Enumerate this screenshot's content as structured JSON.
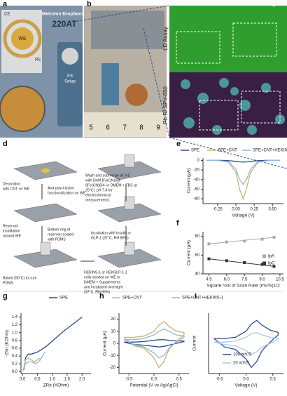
{
  "figure": {
    "panels": [
      "a",
      "b",
      "c",
      "d",
      "e",
      "f",
      "g",
      "h",
      "i"
    ],
    "a": {
      "ce": "CE",
      "we": "WE",
      "re": "RE",
      "brand": "Metrohm DropSens",
      "model": "220AT",
      "setup": [
        "3-E",
        "Setup"
      ]
    },
    "b": {
      "ruler": [
        "5",
        "6",
        "7",
        "8",
        "9"
      ]
    },
    "c": {
      "top": "LD Assay",
      "bottom": "Ph-R/ SPY-650"
    },
    "d": {
      "steps": [
        [
          "Decoration",
          "with CNT on WE"
        ],
        [
          "And poly-l-lysine",
          "functionalization on WE"
        ],
        [
          "Reservoir",
          "installation",
          "around WE"
        ],
        [
          "Bottom ring of",
          "reservoir coated",
          "with PDMS"
        ],
        [
          "Baked (50°C) to cure",
          "PDMS"
        ],
        [
          "HEKINS-1 or HEKGLP-1-1",
          "cells seeded on WE in",
          "DMEM + Supplements",
          "and incubated overnight",
          "(37°C, RH 85%)"
        ],
        [
          "Incubation with Insulin or",
          "GLP-1 (37°C, RH 85%)"
        ],
        [
          "Wash and submerge all 3-E",
          "with 5mM [Fe(CN)6]3-",
          "/[Fe(CN)6]4- in DMEM + FBS at",
          "25°C | pH 7.4 for",
          "electrochemical",
          "measurements"
        ]
      ]
    }
  },
  "chart_data": [
    {
      "type": "line",
      "xlabel": "Voltage (V)",
      "ylabel": "Current (μA)",
      "xlim": [
        -0.45,
        0.65
      ],
      "ylim": [
        -90,
        5
      ],
      "xticks": [
        {
          "value": -0.25,
          "label": "-0.25"
        },
        {
          "value": 0,
          "label": "0.00"
        },
        {
          "value": 0.25,
          "label": "0.25"
        },
        {
          "value": 0.5,
          "label": "0.50"
        }
      ],
      "yticks": [
        0,
        -20,
        -40,
        -60,
        -80
      ],
      "x": [
        -0.4,
        -0.3,
        -0.2,
        -0.1,
        0,
        0.05,
        0.1,
        0.15,
        0.2,
        0.3,
        0.4,
        0.5,
        0.6
      ],
      "series": [
        {
          "name": "SPE",
          "color": "#2a4d8f",
          "values": [
            0,
            0,
            0,
            -0.5,
            -2,
            -3,
            -3.5,
            -3,
            -2,
            -0.5,
            0,
            0,
            0
          ]
        },
        {
          "name": "SPE+CNT",
          "color": "#c8b27a",
          "values": [
            0,
            0,
            -1,
            -4,
            -25,
            -60,
            -80,
            -55,
            -25,
            -4,
            -1,
            0,
            0
          ]
        },
        {
          "name": "SPE+CNT+HEKINS-1",
          "color": "#8fb8dc",
          "values": [
            0,
            0,
            -1,
            -3,
            -18,
            -40,
            -50,
            -38,
            -18,
            -3,
            -1,
            0,
            0
          ]
        }
      ]
    },
    {
      "type": "scatter",
      "xlabel": "Square root of Scan Rate (mV/S)1/2",
      "ylabel": "Current (μA)",
      "xlim": [
        4,
        10.8
      ],
      "ylim": [
        40,
        85
      ],
      "xticks": [
        4.5,
        {
          "value": 6,
          "label": "6.0"
        },
        7.5,
        {
          "value": 9,
          "label": "9.0"
        },
        10.5
      ],
      "yticks": [
        40,
        60,
        80
      ],
      "x": [
        4.5,
        6,
        7.5,
        9,
        10
      ],
      "series": [
        {
          "name": "IpA",
          "color": "#a9a9a9",
          "values": [
            72,
            74,
            75,
            77,
            79
          ]
        },
        {
          "name": "IpC",
          "color": "#333333",
          "values": [
            56,
            54,
            52,
            50,
            48
          ]
        }
      ]
    },
    {
      "type": "line",
      "xlabel": "ZRe (KOhm)",
      "ylabel": "-ZIm (KOhm)",
      "xlim": [
        -0.05,
        2.3
      ],
      "ylim": [
        -0.05,
        1.5
      ],
      "xticks": [
        {
          "value": 0,
          "label": "0.0"
        },
        0.5,
        {
          "value": 1,
          "label": "1.0"
        },
        1.5,
        {
          "value": 2,
          "label": "2.0"
        }
      ],
      "yticks": [
        {
          "value": 0,
          "label": "0.0"
        },
        0.2,
        0.4,
        0.6,
        0.8,
        {
          "value": 1,
          "label": "1.0"
        },
        1.2,
        1.4
      ],
      "series": [
        {
          "name": "SPE",
          "color": "#2a4d8f",
          "x": [
            0.05,
            0.1,
            0.2,
            0.3,
            0.5,
            0.8,
            1.1,
            1.4,
            1.7,
            2.0
          ],
          "values": [
            0.05,
            0.35,
            0.45,
            0.45,
            0.5,
            0.65,
            0.85,
            1.05,
            1.22,
            1.4
          ]
        },
        {
          "name": "SPE+CNT",
          "color": "#c8b27a",
          "x": [
            0.02,
            0.1,
            0.2,
            0.3,
            0.4,
            0.5,
            0.6
          ],
          "values": [
            0.02,
            0.3,
            0.35,
            0.3,
            0.25,
            0.3,
            0.35
          ]
        },
        {
          "name": "SPE+CNT+HEKINS-1",
          "color": "#8fb8dc",
          "x": [
            0.02,
            0.1,
            0.2,
            0.3,
            0.45,
            0.6,
            0.75
          ],
          "values": [
            0.02,
            0.2,
            0.25,
            0.25,
            0.2,
            0.3,
            0.5
          ]
        }
      ]
    },
    {
      "type": "line",
      "xlabel": "Potential (V vs Ag/AgCl)",
      "ylabel": "Current (μA)",
      "xlim": [
        -0.7,
        0.7
      ],
      "ylim": [
        -25,
        25
      ],
      "xticks": [
        -0.5,
        {
          "value": 0,
          "label": "0.0"
        },
        0.5
      ],
      "yticks": [
        -20,
        -10,
        0,
        10,
        20
      ],
      "series": [
        {
          "color": "#2a4d8f",
          "x": [
            -0.6,
            -0.4,
            -0.2,
            0,
            0.1,
            0.2,
            0.3,
            0.45,
            0.6,
            0.6,
            0.45,
            0.3,
            0.2,
            0.1,
            0,
            -0.2,
            -0.4,
            -0.6
          ],
          "values": [
            1,
            1,
            1.5,
            2.5,
            3,
            3,
            2.5,
            2,
            2,
            1.5,
            0,
            -1.5,
            -2.5,
            -3,
            -2.5,
            -1.5,
            -1,
            1
          ]
        },
        {
          "color": "#c8b27a",
          "x": [
            -0.6,
            -0.4,
            -0.2,
            0,
            0.1,
            0.2,
            0.3,
            0.45,
            0.6,
            0.6,
            0.45,
            0.3,
            0.2,
            0.1,
            0,
            -0.2,
            -0.4,
            -0.6
          ],
          "values": [
            5,
            5,
            6,
            10,
            15,
            18,
            14,
            10,
            9,
            7,
            2,
            -5,
            -15,
            -20,
            -12,
            -4,
            -2,
            5
          ]
        },
        {
          "color": "#8fb8dc",
          "x": [
            -0.6,
            -0.4,
            -0.2,
            0,
            0.1,
            0.2,
            0.3,
            0.45,
            0.6,
            0.6,
            0.45,
            0.3,
            0.2,
            0.1,
            0,
            -0.2,
            -0.4,
            -0.6
          ],
          "values": [
            3,
            3,
            4,
            7,
            10,
            12,
            10,
            7,
            6,
            5,
            1,
            -4,
            -10,
            -12,
            -8,
            -3,
            -1,
            3
          ]
        }
      ]
    },
    {
      "type": "line",
      "xlabel": "Voltage (V)",
      "ylabel": "Current",
      "xlim": [
        -0.7,
        0.7
      ],
      "ylim": [
        -25,
        25
      ],
      "xticks": [
        -0.5,
        {
          "value": 0,
          "label": "0.0"
        },
        0.5
      ],
      "series": [
        {
          "name": "100 mV/S",
          "color": "#2a4d8f",
          "x": [
            -0.6,
            -0.4,
            -0.2,
            0,
            0.1,
            0.2,
            0.3,
            0.45,
            0.6,
            0.6,
            0.45,
            0.3,
            0.2,
            0.1,
            0,
            -0.2,
            -0.4,
            -0.6
          ],
          "values": [
            4,
            4,
            5,
            10,
            16,
            19,
            15,
            11,
            9,
            7,
            1,
            -6,
            -15,
            -20,
            -13,
            -5,
            -3,
            4
          ]
        },
        {
          "name": "20 mV/S",
          "color": "#a8c8e8",
          "x": [
            -0.6,
            -0.4,
            -0.2,
            0,
            0.1,
            0.2,
            0.3,
            0.45,
            0.6,
            0.6,
            0.45,
            0.3,
            0.2,
            0.1,
            0,
            -0.2,
            -0.4,
            -0.6
          ],
          "values": [
            1,
            1,
            2,
            5,
            8,
            9,
            7,
            5,
            4,
            3,
            0,
            -3,
            -7,
            -9,
            -6,
            -2,
            -1,
            1
          ]
        }
      ]
    }
  ]
}
